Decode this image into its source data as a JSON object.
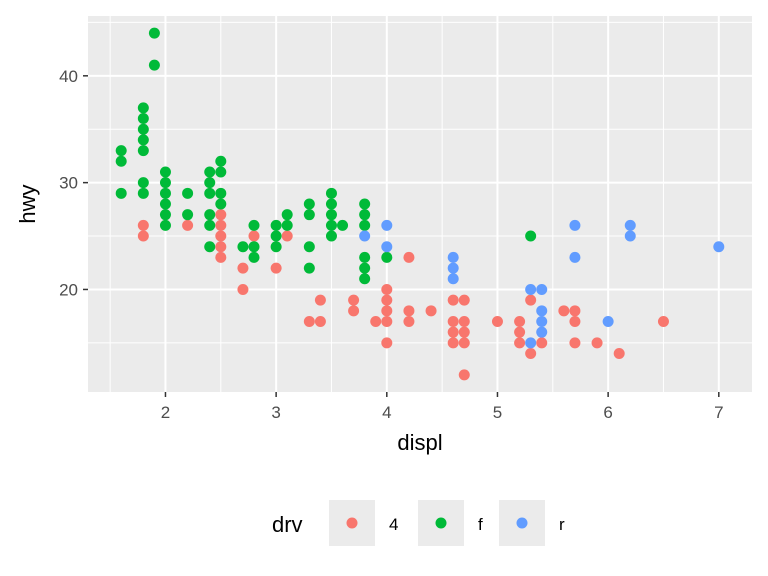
{
  "chart_data": {
    "type": "scatter",
    "title": "",
    "xlabel": "displ",
    "ylabel": "hwy",
    "xlim": [
      1.3,
      7.3
    ],
    "ylim": [
      10.4,
      45.6
    ],
    "x_ticks": [
      2,
      3,
      4,
      5,
      6,
      7
    ],
    "y_ticks": [
      20,
      30,
      40
    ],
    "grid": true,
    "legend": {
      "title": "drv",
      "position": "bottom"
    },
    "series": [
      {
        "name": "4",
        "color": "#F8766D",
        "points": [
          [
            1.8,
            26
          ],
          [
            1.8,
            25
          ],
          [
            2.2,
            26
          ],
          [
            2.5,
            27
          ],
          [
            2.5,
            26
          ],
          [
            2.5,
            25
          ],
          [
            2.5,
            24
          ],
          [
            2.5,
            23
          ],
          [
            2.7,
            22
          ],
          [
            2.7,
            20
          ],
          [
            2.8,
            25
          ],
          [
            3.0,
            22
          ],
          [
            3.1,
            25
          ],
          [
            3.3,
            17
          ],
          [
            3.4,
            19
          ],
          [
            3.4,
            17
          ],
          [
            3.7,
            19
          ],
          [
            3.7,
            18
          ],
          [
            3.9,
            17
          ],
          [
            4.0,
            20
          ],
          [
            4.0,
            19
          ],
          [
            4.0,
            18
          ],
          [
            4.0,
            17
          ],
          [
            4.0,
            15
          ],
          [
            4.2,
            23
          ],
          [
            4.2,
            18
          ],
          [
            4.2,
            17
          ],
          [
            4.4,
            18
          ],
          [
            4.6,
            19
          ],
          [
            4.6,
            17
          ],
          [
            4.6,
            16
          ],
          [
            4.6,
            15
          ],
          [
            4.7,
            19
          ],
          [
            4.7,
            17
          ],
          [
            4.7,
            16
          ],
          [
            4.7,
            15
          ],
          [
            4.7,
            12
          ],
          [
            5.0,
            17
          ],
          [
            5.2,
            17
          ],
          [
            5.2,
            16
          ],
          [
            5.2,
            15
          ],
          [
            5.3,
            19
          ],
          [
            5.3,
            14
          ],
          [
            5.4,
            15
          ],
          [
            5.6,
            18
          ],
          [
            5.7,
            18
          ],
          [
            5.7,
            17
          ],
          [
            5.7,
            15
          ],
          [
            5.9,
            15
          ],
          [
            6.1,
            14
          ],
          [
            6.5,
            17
          ]
        ]
      },
      {
        "name": "f",
        "color": "#00BA38",
        "points": [
          [
            1.6,
            33
          ],
          [
            1.6,
            32
          ],
          [
            1.6,
            29
          ],
          [
            1.8,
            37
          ],
          [
            1.8,
            36
          ],
          [
            1.8,
            35
          ],
          [
            1.8,
            34
          ],
          [
            1.8,
            33
          ],
          [
            1.8,
            30
          ],
          [
            1.8,
            29
          ],
          [
            1.9,
            44
          ],
          [
            1.9,
            41
          ],
          [
            2.0,
            31
          ],
          [
            2.0,
            30
          ],
          [
            2.0,
            29
          ],
          [
            2.0,
            28
          ],
          [
            2.0,
            27
          ],
          [
            2.0,
            26
          ],
          [
            2.2,
            29
          ],
          [
            2.2,
            27
          ],
          [
            2.4,
            31
          ],
          [
            2.4,
            30
          ],
          [
            2.4,
            29
          ],
          [
            2.4,
            27
          ],
          [
            2.4,
            26
          ],
          [
            2.4,
            24
          ],
          [
            2.5,
            32
          ],
          [
            2.5,
            31
          ],
          [
            2.5,
            29
          ],
          [
            2.5,
            28
          ],
          [
            2.7,
            24
          ],
          [
            2.8,
            26
          ],
          [
            2.8,
            24
          ],
          [
            2.8,
            23
          ],
          [
            3.0,
            26
          ],
          [
            3.0,
            25
          ],
          [
            3.0,
            24
          ],
          [
            3.1,
            27
          ],
          [
            3.1,
            26
          ],
          [
            3.3,
            28
          ],
          [
            3.3,
            27
          ],
          [
            3.3,
            24
          ],
          [
            3.3,
            22
          ],
          [
            3.5,
            29
          ],
          [
            3.5,
            28
          ],
          [
            3.5,
            27
          ],
          [
            3.5,
            26
          ],
          [
            3.5,
            25
          ],
          [
            3.6,
            26
          ],
          [
            3.8,
            28
          ],
          [
            3.8,
            27
          ],
          [
            3.8,
            26
          ],
          [
            3.8,
            23
          ],
          [
            3.8,
            22
          ],
          [
            3.8,
            21
          ],
          [
            4.0,
            23
          ],
          [
            5.3,
            25
          ]
        ]
      },
      {
        "name": "r",
        "color": "#619CFF",
        "points": [
          [
            3.8,
            25
          ],
          [
            4.0,
            26
          ],
          [
            4.0,
            24
          ],
          [
            4.6,
            23
          ],
          [
            4.6,
            22
          ],
          [
            4.6,
            21
          ],
          [
            5.3,
            20
          ],
          [
            5.3,
            15
          ],
          [
            5.4,
            20
          ],
          [
            5.4,
            18
          ],
          [
            5.4,
            17
          ],
          [
            5.4,
            16
          ],
          [
            5.7,
            26
          ],
          [
            5.7,
            23
          ],
          [
            6.0,
            17
          ],
          [
            6.2,
            26
          ],
          [
            6.2,
            25
          ],
          [
            7.0,
            24
          ]
        ]
      }
    ]
  }
}
